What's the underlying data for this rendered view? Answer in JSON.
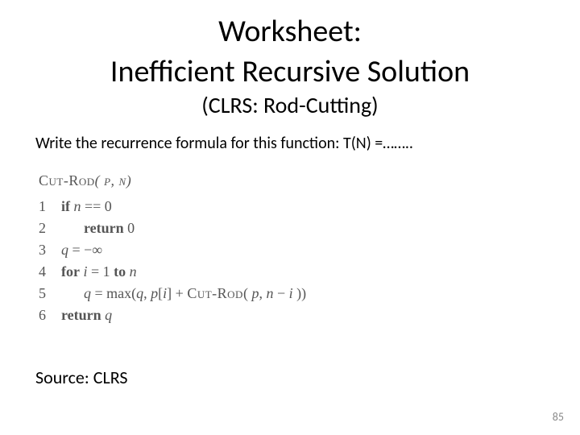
{
  "title_line1": "Worksheet:",
  "title_line2": "Inefficient Recursive Solution",
  "subtitle": "(CLRS: Rod-Cutting)",
  "prompt": "Write the recurrence formula for this function: T(N) =……..",
  "algo": {
    "name_a": "Cut-Rod",
    "name_args": "( p, n)",
    "lines": [
      {
        "n": "1",
        "indent": 0,
        "html": "<span class='kw'>if</span> <span class='it'>n</span> == 0"
      },
      {
        "n": "2",
        "indent": 1,
        "html": "<span class='kw'>return</span> 0"
      },
      {
        "n": "3",
        "indent": 0,
        "html": "<span class='it'>q</span> = −∞"
      },
      {
        "n": "4",
        "indent": 0,
        "html": "<span class='kw'>for</span> <span class='it'>i</span> = 1 <span class='kw'>to</span> <span class='it'>n</span>"
      },
      {
        "n": "5",
        "indent": 1,
        "html": "<span class='it'>q</span> = max(<span class='it'>q</span>, <span class='it'>p</span>[<span class='it'>i</span>] + <span class='sc'>Cut-Rod</span>( <span class='it'>p</span>, <span class='it'>n</span> − <span class='it'>i</span> ))"
      },
      {
        "n": "6",
        "indent": 0,
        "html": "<span class='kw'>return</span> <span class='it'>q</span>"
      }
    ]
  },
  "source": "Source: CLRS",
  "pagenum": "85"
}
